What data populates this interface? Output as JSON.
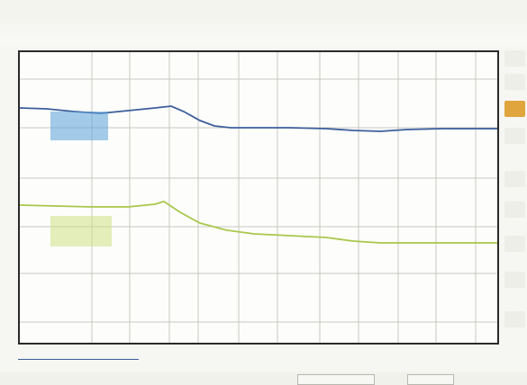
{
  "header": {
    "title_text": "",
    "time_readout": "",
    "status_text": "",
    "status_subtext": "",
    "status_color": "#e07a3c"
  },
  "info_bar": {
    "items": [
      "",
      "",
      "",
      "",
      ""
    ]
  },
  "traces": [
    {
      "label": "",
      "sublabel": "",
      "color": "#3c5e9c",
      "marker_color": "#5aa0d8"
    },
    {
      "label": "",
      "sublabel": "",
      "color": "#a8c84a",
      "marker_color": "#c9df7a"
    }
  ],
  "side_panel": {
    "keys": [
      "",
      "",
      "",
      "",
      "",
      "",
      "",
      "",
      ""
    ],
    "active_key_color": "#e0a53c"
  },
  "footer": {
    "scale_label": "",
    "scale_sublabel": "",
    "readout_left": "",
    "readout_right": "",
    "readout_right_color": "#8fbf4a"
  }
}
